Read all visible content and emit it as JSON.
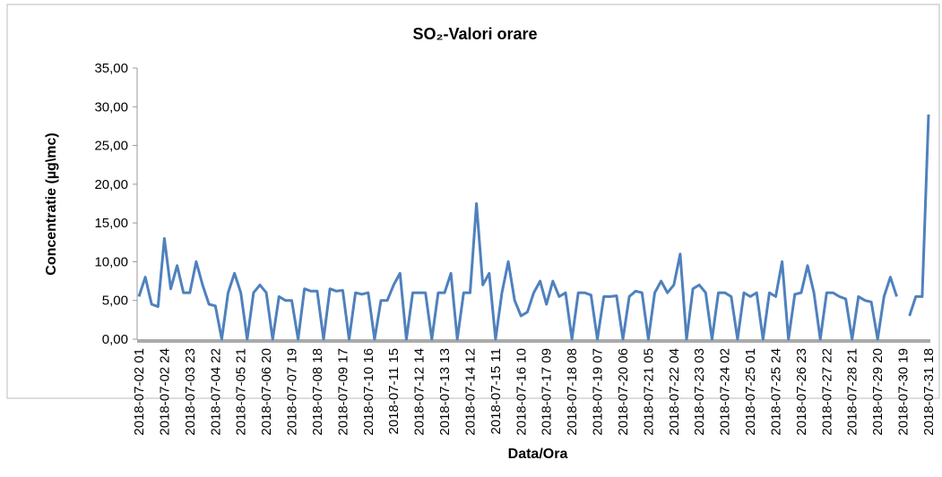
{
  "chart_data": {
    "type": "line",
    "title": "SO₂-Valori orare",
    "x_label": "Data/Ora",
    "y_label": "Concentratie (µg\\mc)",
    "categories": [
      "2018-07-02 01",
      null,
      null,
      null,
      "2018-07-02 24",
      null,
      null,
      null,
      "2018-07-03 23",
      null,
      null,
      null,
      "2018-07-04 22",
      null,
      null,
      null,
      "2018-07-05 21",
      null,
      null,
      null,
      "2018-07-06 20",
      null,
      null,
      null,
      "2018-07-07 19",
      null,
      null,
      null,
      "2018-07-08 18",
      null,
      null,
      null,
      "2018-07-09 17",
      null,
      null,
      null,
      "2018-07-10 16",
      null,
      null,
      null,
      "2018-07-11 15",
      null,
      null,
      null,
      "2018-07-12 14",
      null,
      null,
      null,
      "2018-07-13 13",
      null,
      null,
      null,
      "2018-07-14 12",
      null,
      null,
      null,
      "2018-07-15 11",
      null,
      null,
      null,
      "2018-07-16 10",
      null,
      null,
      null,
      "2018-07-17 09",
      null,
      null,
      null,
      "2018-07-18 08",
      null,
      null,
      null,
      "2018-07-19 07",
      null,
      null,
      null,
      "2018-07-20 06",
      null,
      null,
      null,
      "2018-07-21 05",
      null,
      null,
      null,
      "2018-07-22 04",
      null,
      null,
      null,
      "2018-07-23 03",
      null,
      null,
      null,
      "2018-07-24 02",
      null,
      null,
      null,
      "2018-07-25 01",
      null,
      null,
      null,
      "2018-07-25 24",
      null,
      null,
      null,
      "2018-07-26 23",
      null,
      null,
      null,
      "2018-07-27 22",
      null,
      null,
      null,
      "2018-07-28 21",
      null,
      null,
      null,
      "2018-07-29 20",
      null,
      null,
      null,
      "2018-07-30 19",
      null,
      null,
      null,
      "2018-07-31 18"
    ],
    "series": [
      {
        "name": "SO2",
        "color": "#4f81bd",
        "values": [
          5.5,
          8,
          4.5,
          4.2,
          13,
          6.5,
          9.5,
          6,
          6,
          10,
          7,
          4.5,
          4.3,
          0,
          6,
          8.5,
          6,
          0,
          6,
          7,
          6,
          0,
          5.5,
          5,
          5,
          0,
          6.5,
          6.2,
          6.2,
          0,
          6.5,
          6.2,
          6.3,
          0,
          6,
          5.8,
          6,
          0,
          5,
          5,
          7,
          8.5,
          0,
          6,
          6,
          6,
          0,
          6,
          6,
          8.5,
          0,
          6,
          6,
          17.5,
          7,
          8.5,
          0,
          6,
          10,
          5,
          3,
          3.5,
          6,
          7.5,
          4.5,
          7.5,
          5.5,
          6,
          0,
          6,
          6,
          5.7,
          0,
          5.5,
          5.5,
          5.6,
          0,
          5.5,
          6.2,
          6,
          0,
          6,
          7.5,
          6,
          7,
          11,
          0,
          6.5,
          7,
          6,
          0,
          6,
          6,
          5.5,
          0,
          6,
          5.5,
          6,
          0,
          6,
          5.5,
          10,
          0,
          5.8,
          6,
          9.5,
          6,
          0,
          6,
          6,
          5.5,
          5.2,
          0,
          5.5,
          5,
          4.8,
          0,
          5.5,
          8,
          5.5,
          null,
          3,
          5.5,
          5.5,
          29
        ]
      }
    ],
    "ylim": [
      0,
      35
    ],
    "yticks": [
      {
        "value": 0,
        "label": "0,00"
      },
      {
        "value": 5,
        "label": "5,00"
      },
      {
        "value": 10,
        "label": "10,00"
      },
      {
        "value": 15,
        "label": "15,00"
      },
      {
        "value": 20,
        "label": "20,00"
      },
      {
        "value": 25,
        "label": "25,00"
      },
      {
        "value": 30,
        "label": "30,00"
      },
      {
        "value": 35,
        "label": "35,00"
      }
    ],
    "grid": false
  }
}
